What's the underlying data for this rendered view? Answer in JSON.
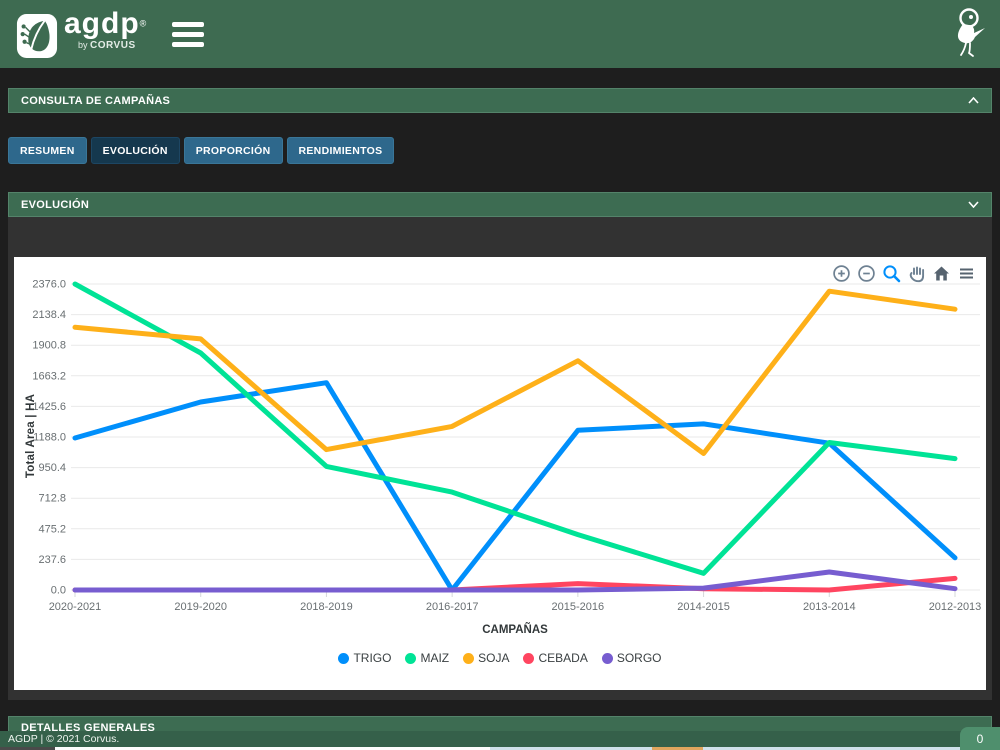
{
  "header": {
    "logo_text": "agdp",
    "logo_registered": "®",
    "logo_byline_prefix": "by ",
    "logo_byline_brand": "CORVUS"
  },
  "panels": {
    "consulta": {
      "title": "CONSULTA DE CAMPAÑAS"
    },
    "evolucion": {
      "title": "EVOLUCIÓN"
    },
    "detalles": {
      "title": "DETALLES GENERALES"
    }
  },
  "tabs": [
    {
      "label": "RESUMEN",
      "active": false
    },
    {
      "label": "EVOLUCIÓN",
      "active": true
    },
    {
      "label": "PROPORCIÓN",
      "active": false
    },
    {
      "label": "RENDIMIENTOS",
      "active": false
    }
  ],
  "chart_data": {
    "type": "line",
    "xlabel": "CAMPAÑAS",
    "ylabel": "Total Area | HA",
    "categories": [
      "2020-2021",
      "2019-2020",
      "2018-2019",
      "2016-2017",
      "2015-2016",
      "2014-2015",
      "2013-2014",
      "2012-2013"
    ],
    "series": [
      {
        "name": "TRIGO",
        "color": "#008FFB",
        "values": [
          1180,
          1460,
          1610,
          0,
          1240,
          1290,
          1140,
          250
        ]
      },
      {
        "name": "MAIZ",
        "color": "#00E396",
        "values": [
          2376,
          1840,
          960,
          760,
          430,
          130,
          1145,
          1020
        ]
      },
      {
        "name": "SOJA",
        "color": "#FEB019",
        "values": [
          2040,
          1950,
          1090,
          1270,
          1780,
          1060,
          2320,
          2180
        ]
      },
      {
        "name": "CEBADA",
        "color": "#FF4560",
        "values": [
          0,
          0,
          0,
          0,
          50,
          10,
          0,
          90
        ]
      },
      {
        "name": "SORGO",
        "color": "#775DD0",
        "values": [
          0,
          0,
          0,
          0,
          0,
          15,
          140,
          10
        ]
      }
    ],
    "ylim": [
      0,
      2376
    ],
    "ytick_step": 237.6,
    "ytick_labels": [
      "0.0",
      "237.6",
      "475.2",
      "712.8",
      "950.4",
      "1188.0",
      "1425.6",
      "1663.2",
      "1900.8",
      "2138.4",
      "2376.0"
    ],
    "grid": true,
    "legend_position": "bottom",
    "toolbar_icons": [
      "zoom-in-icon",
      "zoom-out-icon",
      "selection-zoom-icon",
      "pan-icon",
      "home-icon",
      "menu-icon"
    ],
    "accent_color": "#008FFB"
  },
  "footer": {
    "text": "AGDP | © 2021 Corvus.",
    "badge_count": "0"
  }
}
